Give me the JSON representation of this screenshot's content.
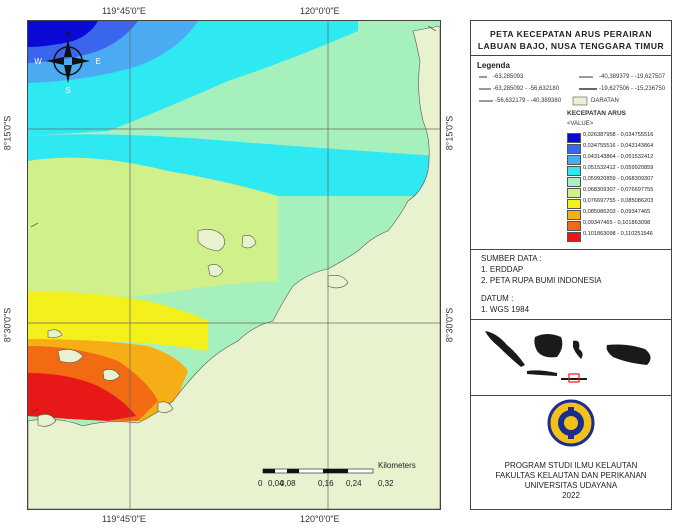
{
  "map": {
    "coords": {
      "top_left": "119°45'0\"E",
      "top_right": "120°0'0\"E",
      "bottom_left": "119°45'0\"E",
      "bottom_right": "120°0'0\"E",
      "left_upper": "8°15'0\"S",
      "left_lower": "8°30'0\"S",
      "right_upper": "8°15'0\"S",
      "right_lower": "8°30'0\"S"
    },
    "compass": {
      "n": "N",
      "e": "E",
      "s": "S",
      "w": "W"
    },
    "scale": {
      "labels": [
        "0",
        "0,04",
        "0,08",
        "0,16",
        "0,24",
        "0,32"
      ],
      "unit": "Kilometers"
    }
  },
  "panel": {
    "title_line1": "PETA KECEPATAN ARUS PERAIRAN",
    "title_line2": "LABUAN BAJO, NUSA TENGGARA TIMUR",
    "legend_label": "Legenda",
    "arrows": [
      "-63,285093",
      "-63,285092 - -56,632180",
      "-56,632179 - -40,389380",
      "-40,389379 - -19,627507",
      "-19,627506 - -15,236750"
    ],
    "land_label": "DARATAN",
    "speed_title": "KECEPATAN ARUS",
    "value_label": "<VALUE>",
    "classes": [
      {
        "label": "0,026387958 - 0,034755516",
        "color": "#0a0ad6"
      },
      {
        "label": "0,034755516 - 0,043143864",
        "color": "#3a66ee"
      },
      {
        "label": "0,043143864 - 0,051532412",
        "color": "#4aaaf2"
      },
      {
        "label": "0,051532412 - 0,059920859",
        "color": "#2ee8f2"
      },
      {
        "label": "0,059920859 - 0,068309307",
        "color": "#a6f0be"
      },
      {
        "label": "0,068309307 - 0,076697755",
        "color": "#cff08a"
      },
      {
        "label": "0,076697755 - 0,085086203",
        "color": "#f4f01c"
      },
      {
        "label": "0,085086203 - 0,09347465",
        "color": "#f6ae16"
      },
      {
        "label": "0,09347465 - 0,101863098",
        "color": "#f26a12"
      },
      {
        "label": "0,101863098 - 0,110251546",
        "color": "#e81818"
      }
    ],
    "sources_label": "SUMBER DATA :",
    "sources": [
      "1. ERDDAP",
      "2. PETA RUPA BUMI INDONESIA"
    ],
    "datum_label": "DATUM :",
    "datum": "1. WGS 1984",
    "footer_lines": [
      "PROGRAM STUDI ILMU KELAUTAN",
      "FAKULTAS KELAUTAN DAN PERIKANAN",
      "UNIVERSITAS UDAYANA",
      "2022"
    ]
  }
}
